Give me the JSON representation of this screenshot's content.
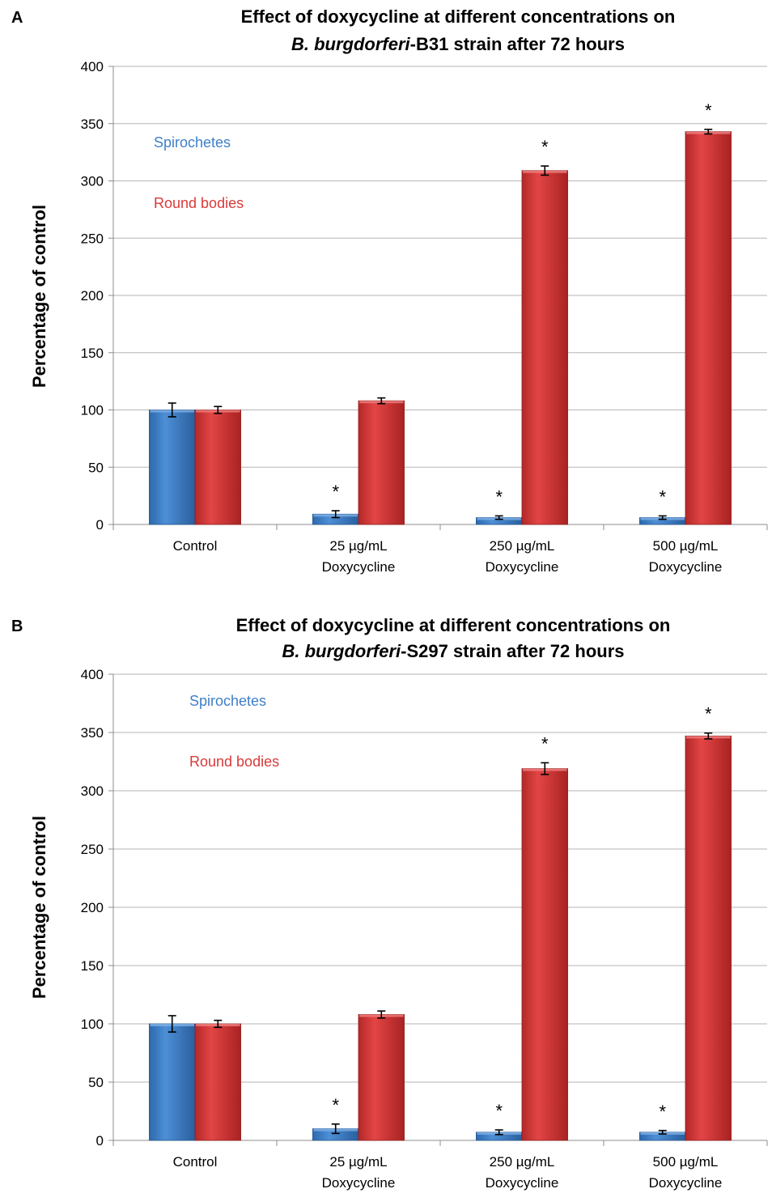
{
  "chart_data": [
    {
      "panel_label": "A",
      "type": "bar",
      "title_line1": "Effect of doxycycline at different concentrations on",
      "title_line2_italic": "B. burgdorferi",
      "title_line2_rest": "-B31 strain after 72 hours",
      "ylabel": "Percentage of control",
      "xlabel": "",
      "ylim": [
        0,
        400
      ],
      "yticks": [
        0,
        50,
        100,
        150,
        200,
        250,
        300,
        350,
        400
      ],
      "grid": true,
      "legend_placement": "top-left",
      "categories": [
        [
          "Control"
        ],
        [
          "25 µg/mL",
          "Doxycycline"
        ],
        [
          "250 µg/mL",
          "Doxycycline"
        ],
        [
          "500 µg/mL",
          "Doxycycline"
        ]
      ],
      "series": [
        {
          "name": "Spirochetes",
          "color": "#3f7fc6",
          "values": [
            100,
            9,
            6,
            6
          ],
          "errors": [
            6,
            3,
            1.5,
            1.5
          ],
          "significance": [
            "",
            "*",
            "*",
            "*"
          ]
        },
        {
          "name": "Round bodies",
          "color": "#d93a3a",
          "values": [
            100,
            108,
            309,
            343
          ],
          "errors": [
            3,
            2.5,
            4,
            2
          ],
          "significance": [
            "",
            "",
            "*",
            "*"
          ]
        }
      ]
    },
    {
      "panel_label": "B",
      "type": "bar",
      "title_line1": "Effect of doxycycline at different concentrations on",
      "title_line2_italic": "B. burgdorferi",
      "title_line2_rest": "-S297 strain after 72 hours",
      "ylabel": "Percentage of control",
      "xlabel": "",
      "ylim": [
        0,
        400
      ],
      "yticks": [
        0,
        50,
        100,
        150,
        200,
        250,
        300,
        350,
        400
      ],
      "grid": true,
      "legend_placement": "top-left",
      "categories": [
        [
          "Control"
        ],
        [
          "25 µg/mL",
          "Doxycycline"
        ],
        [
          "250 µg/mL",
          "Doxycycline"
        ],
        [
          "500 µg/mL",
          "Doxycycline"
        ]
      ],
      "series": [
        {
          "name": "Spirochetes",
          "color": "#3f7fc6",
          "values": [
            100,
            10,
            7,
            7
          ],
          "errors": [
            7,
            4,
            2,
            1.5
          ],
          "significance": [
            "",
            "*",
            "*",
            "*"
          ]
        },
        {
          "name": "Round bodies",
          "color": "#d93a3a",
          "values": [
            100,
            108,
            319,
            347
          ],
          "errors": [
            3,
            3,
            5,
            2.5
          ],
          "significance": [
            "",
            "",
            "*",
            "*"
          ]
        }
      ]
    }
  ]
}
